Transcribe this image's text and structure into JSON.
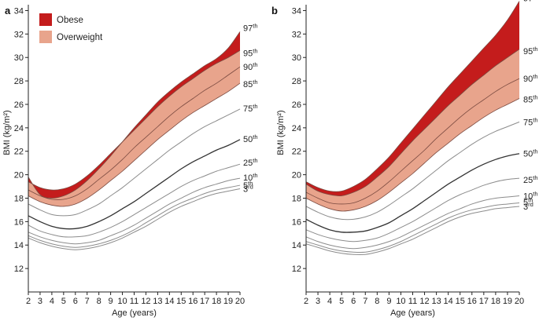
{
  "legend": {
    "obese_label": "Obese",
    "overweight_label": "Overweight",
    "obese_color": "#c41c1c",
    "overweight_color": "#e8a48c"
  },
  "chart_data": [
    {
      "panel": "a",
      "type": "line",
      "xlabel": "Age (years)",
      "ylabel": "BMI (kg/m²)",
      "xlim": [
        2,
        20
      ],
      "ylim": [
        10,
        34.5
      ],
      "x_ticks": [
        2,
        3,
        4,
        5,
        6,
        7,
        8,
        9,
        10,
        11,
        12,
        13,
        14,
        15,
        16,
        17,
        18,
        19,
        20
      ],
      "y_ticks": [
        12,
        14,
        16,
        18,
        20,
        22,
        24,
        26,
        28,
        30,
        32,
        34
      ],
      "grid": false,
      "legend_position": "top-left",
      "x": [
        2,
        3,
        4,
        5,
        6,
        7,
        8,
        9,
        10,
        11,
        12,
        13,
        14,
        15,
        16,
        17,
        18,
        19,
        20
      ],
      "percentiles": [
        {
          "name": "3",
          "label": "3rd",
          "values": [
            14.6,
            14.2,
            13.9,
            13.7,
            13.6,
            13.7,
            13.9,
            14.2,
            14.6,
            15.1,
            15.6,
            16.2,
            16.8,
            17.3,
            17.7,
            18.1,
            18.4,
            18.6,
            18.8
          ]
        },
        {
          "name": "5",
          "label": "5th",
          "values": [
            14.8,
            14.4,
            14.1,
            13.9,
            13.8,
            13.9,
            14.1,
            14.4,
            14.8,
            15.3,
            15.9,
            16.5,
            17.1,
            17.6,
            18.0,
            18.4,
            18.7,
            18.9,
            19.1
          ]
        },
        {
          "name": "10",
          "label": "10th",
          "values": [
            15.1,
            14.7,
            14.4,
            14.2,
            14.1,
            14.2,
            14.4,
            14.8,
            15.2,
            15.7,
            16.3,
            16.9,
            17.5,
            18.0,
            18.5,
            18.9,
            19.2,
            19.5,
            19.7
          ]
        },
        {
          "name": "25",
          "label": "25th",
          "values": [
            15.7,
            15.2,
            14.9,
            14.7,
            14.7,
            14.8,
            15.1,
            15.5,
            16.0,
            16.6,
            17.2,
            17.8,
            18.4,
            19.0,
            19.5,
            19.9,
            20.3,
            20.6,
            20.9
          ]
        },
        {
          "name": "50",
          "label": "50th",
          "values": [
            16.5,
            16.0,
            15.6,
            15.4,
            15.4,
            15.6,
            16.0,
            16.5,
            17.1,
            17.7,
            18.4,
            19.1,
            19.8,
            20.5,
            21.1,
            21.6,
            22.1,
            22.5,
            23.0
          ]
        },
        {
          "name": "75",
          "label": "75th",
          "values": [
            17.5,
            17.0,
            16.6,
            16.5,
            16.6,
            17.0,
            17.5,
            18.2,
            18.9,
            19.7,
            20.5,
            21.3,
            22.1,
            22.8,
            23.5,
            24.1,
            24.6,
            25.1,
            25.6
          ]
        },
        {
          "name": "85",
          "label": "85th",
          "values": [
            18.2,
            17.7,
            17.4,
            17.3,
            17.5,
            18.0,
            18.7,
            19.5,
            20.3,
            21.2,
            22.1,
            23.0,
            23.8,
            24.6,
            25.3,
            25.9,
            26.5,
            27.1,
            27.8
          ]
        },
        {
          "name": "90",
          "label": "90th",
          "values": [
            18.7,
            18.2,
            17.9,
            17.9,
            18.2,
            18.8,
            19.6,
            20.4,
            21.3,
            22.3,
            23.2,
            24.1,
            25.0,
            25.8,
            26.5,
            27.2,
            27.8,
            28.5,
            29.2
          ]
        },
        {
          "name": "95",
          "label": "95th",
          "values": [
            19.4,
            18.9,
            18.7,
            18.8,
            19.2,
            19.9,
            20.8,
            21.8,
            22.8,
            23.8,
            24.8,
            25.8,
            26.7,
            27.5,
            28.2,
            28.9,
            29.5,
            30.0,
            30.6
          ]
        },
        {
          "name": "97",
          "label": "97th",
          "values": [
            19.8,
            18.3,
            18.0,
            18.2,
            18.7,
            19.5,
            20.5,
            21.6,
            22.8,
            24.0,
            25.1,
            26.2,
            27.1,
            27.9,
            28.6,
            29.3,
            29.9,
            30.8,
            32.2
          ]
        }
      ]
    },
    {
      "panel": "b",
      "type": "line",
      "xlabel": "Age (years)",
      "ylabel": "BMI (kg/m²)",
      "xlim": [
        2,
        20
      ],
      "ylim": [
        10,
        34.5
      ],
      "x_ticks": [
        2,
        3,
        4,
        5,
        6,
        7,
        8,
        9,
        10,
        11,
        12,
        13,
        14,
        15,
        16,
        17,
        18,
        19,
        20
      ],
      "y_ticks": [
        12,
        14,
        16,
        18,
        20,
        22,
        24,
        26,
        28,
        30,
        32,
        34
      ],
      "grid": false,
      "x": [
        2,
        3,
        4,
        5,
        6,
        7,
        8,
        9,
        10,
        11,
        12,
        13,
        14,
        15,
        16,
        17,
        18,
        19,
        20
      ],
      "percentiles": [
        {
          "name": "3",
          "label": "3rd",
          "values": [
            14.1,
            13.8,
            13.5,
            13.3,
            13.2,
            13.2,
            13.4,
            13.7,
            14.1,
            14.5,
            15.0,
            15.5,
            16.0,
            16.4,
            16.7,
            16.9,
            17.1,
            17.2,
            17.3
          ]
        },
        {
          "name": "5",
          "label": "5th",
          "values": [
            14.3,
            14.0,
            13.7,
            13.5,
            13.4,
            13.4,
            13.6,
            13.9,
            14.3,
            14.8,
            15.3,
            15.8,
            16.3,
            16.7,
            17.0,
            17.2,
            17.4,
            17.5,
            17.6
          ]
        },
        {
          "name": "10",
          "label": "10th",
          "values": [
            14.7,
            14.3,
            14.0,
            13.8,
            13.7,
            13.8,
            14.0,
            14.3,
            14.7,
            15.2,
            15.7,
            16.2,
            16.7,
            17.1,
            17.5,
            17.8,
            18.0,
            18.1,
            18.2
          ]
        },
        {
          "name": "25",
          "label": "25th",
          "values": [
            15.3,
            14.9,
            14.6,
            14.4,
            14.3,
            14.4,
            14.6,
            15.0,
            15.5,
            16.0,
            16.6,
            17.2,
            17.8,
            18.3,
            18.7,
            19.1,
            19.4,
            19.6,
            19.7
          ]
        },
        {
          "name": "50",
          "label": "50th",
          "values": [
            16.2,
            15.7,
            15.3,
            15.1,
            15.1,
            15.2,
            15.5,
            15.9,
            16.5,
            17.1,
            17.8,
            18.5,
            19.2,
            19.8,
            20.4,
            20.9,
            21.3,
            21.6,
            21.8
          ]
        },
        {
          "name": "75",
          "label": "75th",
          "values": [
            17.3,
            16.8,
            16.4,
            16.2,
            16.2,
            16.4,
            16.8,
            17.4,
            18.1,
            18.8,
            19.6,
            20.4,
            21.2,
            21.9,
            22.6,
            23.2,
            23.7,
            24.1,
            24.5
          ]
        },
        {
          "name": "85",
          "label": "85th",
          "values": [
            18.0,
            17.5,
            17.1,
            16.9,
            17.0,
            17.3,
            17.8,
            18.5,
            19.3,
            20.1,
            21.0,
            21.9,
            22.7,
            23.5,
            24.2,
            24.9,
            25.5,
            26.0,
            26.5
          ]
        },
        {
          "name": "90",
          "label": "90th",
          "values": [
            18.5,
            18.0,
            17.6,
            17.5,
            17.6,
            18.0,
            18.6,
            19.4,
            20.3,
            21.2,
            22.1,
            23.1,
            24.0,
            24.9,
            25.7,
            26.4,
            27.1,
            27.7,
            28.2
          ]
        },
        {
          "name": "95",
          "label": "95th",
          "values": [
            19.2,
            18.6,
            18.3,
            18.2,
            18.5,
            19.0,
            19.8,
            20.7,
            21.8,
            22.9,
            23.9,
            24.9,
            25.9,
            26.8,
            27.7,
            28.5,
            29.3,
            30.0,
            30.7
          ]
        },
        {
          "name": "97",
          "label": "97th",
          "values": [
            19.4,
            18.9,
            18.6,
            18.6,
            19.0,
            19.6,
            20.5,
            21.5,
            22.7,
            23.9,
            25.1,
            26.3,
            27.5,
            28.6,
            29.7,
            30.8,
            31.9,
            33.2,
            34.8
          ]
        }
      ]
    }
  ]
}
